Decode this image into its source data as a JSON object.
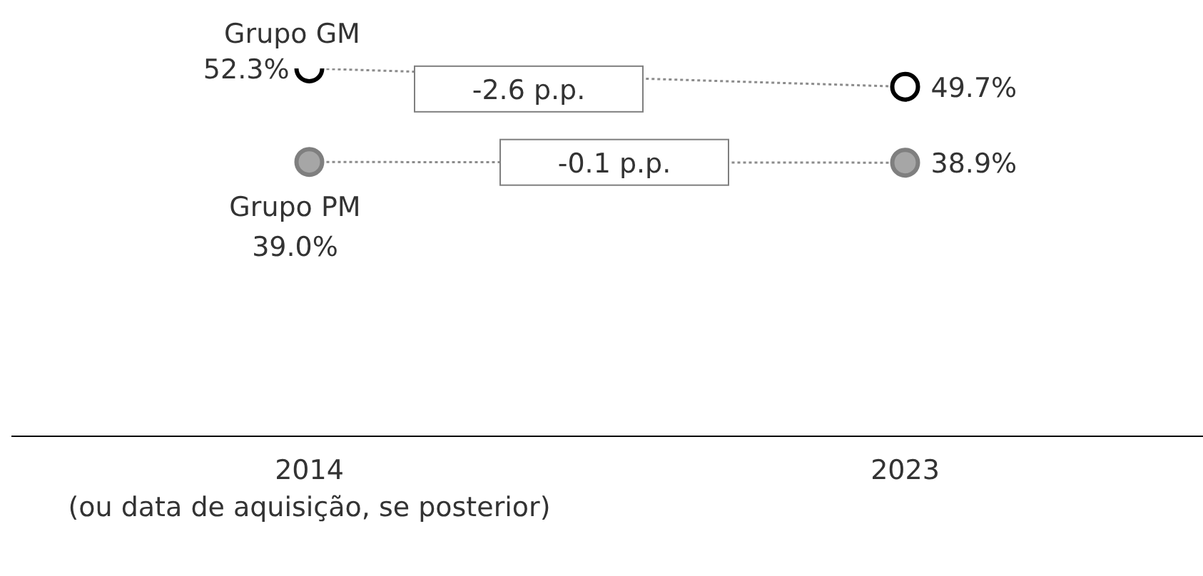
{
  "chart_data": {
    "type": "line",
    "categories": [
      "2014\n(ou data de aquisição, se posterior)",
      "2023"
    ],
    "series": [
      {
        "name": "Grupo GM",
        "color": "#000000",
        "values": [
          52.3,
          49.7
        ],
        "value_labels": [
          "52.3%",
          "49.7%"
        ]
      },
      {
        "name": "Grupo PM",
        "color": "#7f7f7f",
        "values": [
          39.0,
          38.9
        ],
        "value_labels": [
          "39.0%",
          "38.9%"
        ]
      }
    ],
    "annotations": [
      "-2.6 p.p.",
      "-0.1 p.p."
    ],
    "marker": "circle",
    "line_style": "dotted",
    "grid": false,
    "legend": false
  }
}
